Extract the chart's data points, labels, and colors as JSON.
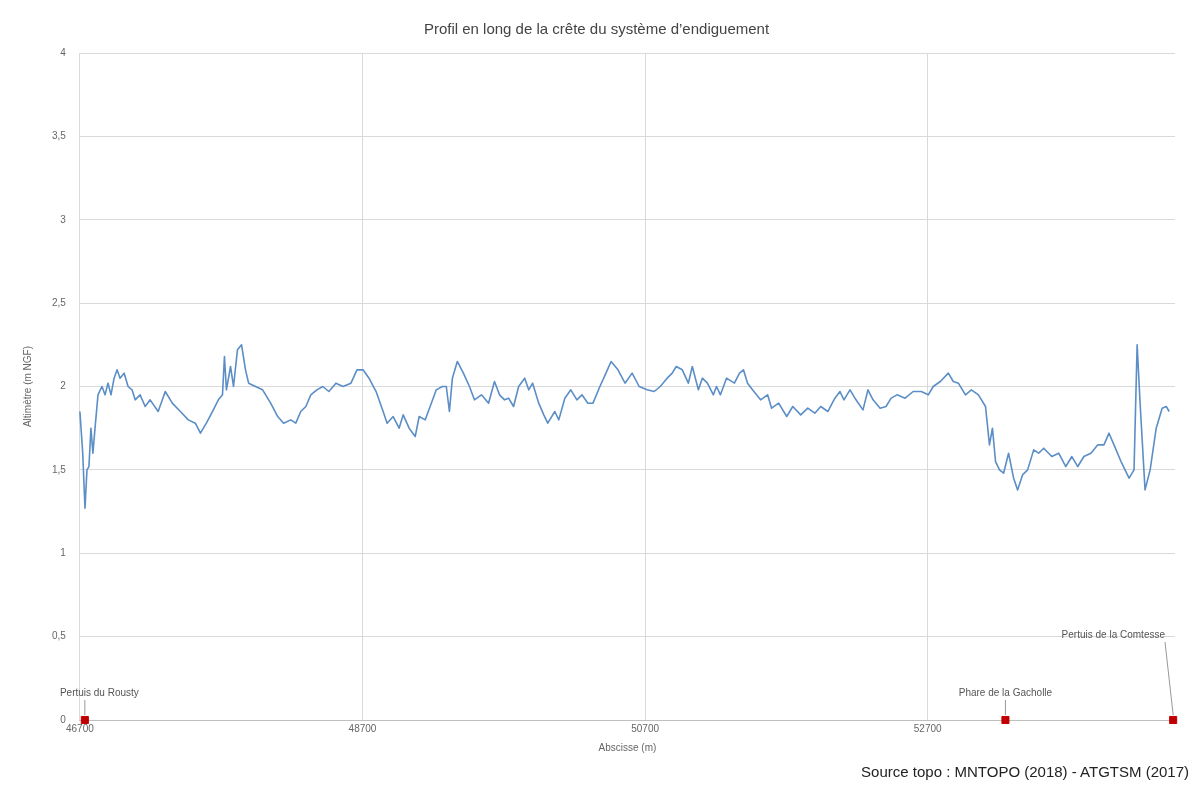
{
  "chart_data": {
    "type": "line",
    "title": "Profil en long de la crête du système d’endiguement",
    "xlabel": "Abscisse (m)",
    "ylabel": "Altimètre (m NGF)",
    "xlim": [
      46700,
      54450
    ],
    "xticks": [
      46700,
      48700,
      50700,
      52700
    ],
    "ylim": [
      0,
      4
    ],
    "yticks": [
      0,
      {
        "value": 0.5,
        "label": "0,5"
      },
      1,
      {
        "value": 1.5,
        "label": "1,5"
      },
      2,
      {
        "value": 2.5,
        "label": "2,5"
      },
      3,
      {
        "value": 3.5,
        "label": "3,5"
      },
      4
    ],
    "grid": true,
    "legend": false,
    "marker": "none",
    "line_style": "solid",
    "series": [
      {
        "type": "line",
        "color": "#5b8ec6",
        "x": [
          46700,
          46720,
          46736,
          46750,
          46764,
          46778,
          46792,
          46807,
          46828,
          46856,
          46878,
          46899,
          46920,
          46942,
          46963,
          46984,
          47013,
          47041,
          47069,
          47091,
          47126,
          47162,
          47197,
          47254,
          47304,
          47354,
          47411,
          47467,
          47517,
          47553,
          47595,
          47638,
          47680,
          47709,
          47723,
          47737,
          47766,
          47787,
          47815,
          47844,
          47872,
          47894,
          47943,
          47993,
          48050,
          48100,
          48142,
          48192,
          48228,
          48263,
          48299,
          48334,
          48377,
          48419,
          48462,
          48512,
          48562,
          48618,
          48661,
          48704,
          48746,
          48796,
          48846,
          48874,
          48917,
          48959,
          48988,
          49030,
          49073,
          49101,
          49144,
          49187,
          49222,
          49265,
          49293,
          49315,
          49336,
          49371,
          49414,
          49457,
          49492,
          49542,
          49592,
          49634,
          49670,
          49705,
          49734,
          49769,
          49805,
          49848,
          49876,
          49904,
          49947,
          49983,
          50011,
          50061,
          50089,
          50132,
          50174,
          50217,
          50253,
          50295,
          50331,
          50380,
          50423,
          50459,
          50508,
          50558,
          50608,
          50658,
          50714,
          50764,
          50807,
          50856,
          50892,
          50920,
          50963,
          51006,
          51034,
          51077,
          51105,
          51141,
          51183,
          51205,
          51233,
          51276,
          51332,
          51368,
          51396,
          51425,
          51460,
          51517,
          51567,
          51595,
          51645,
          51702,
          51745,
          51801,
          51851,
          51901,
          51943,
          51993,
          52043,
          52079,
          52107,
          52150,
          52185,
          52242,
          52277,
          52313,
          52363,
          52405,
          52441,
          52483,
          52540,
          52597,
          52654,
          52704,
          52739,
          52789,
          52846,
          52881,
          52917,
          52967,
          53009,
          53059,
          53109,
          53137,
          53158,
          53180,
          53208,
          53237,
          53272,
          53308,
          53336,
          53371,
          53407,
          53450,
          53485,
          53521,
          53578,
          53627,
          53677,
          53720,
          53762,
          53805,
          53855,
          53904,
          53947,
          53983,
          54018,
          54068,
          54125,
          54160,
          54182,
          54203,
          54238,
          54274,
          54317,
          54359,
          54388,
          54409
        ],
        "values": [
          1.85,
          1.6,
          1.27,
          1.5,
          1.52,
          1.75,
          1.6,
          1.75,
          1.95,
          2.0,
          1.95,
          2.02,
          1.95,
          2.05,
          2.1,
          2.05,
          2.08,
          2.0,
          1.98,
          1.92,
          1.95,
          1.88,
          1.92,
          1.85,
          1.97,
          1.9,
          1.85,
          1.8,
          1.78,
          1.72,
          1.78,
          1.85,
          1.92,
          1.95,
          2.18,
          1.98,
          2.12,
          2.0,
          2.22,
          2.25,
          2.1,
          2.02,
          2.0,
          1.98,
          1.9,
          1.82,
          1.78,
          1.8,
          1.78,
          1.85,
          1.88,
          1.95,
          1.98,
          2.0,
          1.97,
          2.02,
          2.0,
          2.02,
          2.1,
          2.1,
          2.05,
          1.97,
          1.85,
          1.78,
          1.82,
          1.75,
          1.83,
          1.75,
          1.7,
          1.82,
          1.8,
          1.9,
          1.98,
          2.0,
          2.0,
          1.85,
          2.05,
          2.15,
          2.08,
          2.0,
          1.92,
          1.95,
          1.9,
          2.03,
          1.95,
          1.92,
          1.93,
          1.88,
          2.0,
          2.05,
          1.98,
          2.02,
          1.9,
          1.83,
          1.78,
          1.85,
          1.8,
          1.93,
          1.98,
          1.92,
          1.95,
          1.9,
          1.9,
          2.0,
          2.08,
          2.15,
          2.1,
          2.02,
          2.08,
          2.0,
          1.98,
          1.97,
          2.0,
          2.05,
          2.08,
          2.12,
          2.1,
          2.02,
          2.12,
          1.98,
          2.05,
          2.02,
          1.95,
          2.0,
          1.95,
          2.05,
          2.02,
          2.08,
          2.1,
          2.02,
          1.98,
          1.92,
          1.95,
          1.87,
          1.9,
          1.82,
          1.88,
          1.83,
          1.87,
          1.84,
          1.88,
          1.85,
          1.93,
          1.97,
          1.92,
          1.98,
          1.93,
          1.86,
          1.98,
          1.92,
          1.87,
          1.88,
          1.93,
          1.95,
          1.93,
          1.97,
          1.97,
          1.95,
          2.0,
          2.03,
          2.08,
          2.03,
          2.02,
          1.95,
          1.98,
          1.95,
          1.88,
          1.65,
          1.75,
          1.55,
          1.5,
          1.48,
          1.6,
          1.45,
          1.38,
          1.47,
          1.5,
          1.62,
          1.6,
          1.63,
          1.58,
          1.6,
          1.52,
          1.58,
          1.52,
          1.58,
          1.6,
          1.65,
          1.65,
          1.72,
          1.65,
          1.55,
          1.45,
          1.5,
          2.25,
          1.9,
          1.38,
          1.5,
          1.75,
          1.87,
          1.88,
          1.85
        ]
      },
      {
        "type": "scatter",
        "color": "#c00000",
        "marker": "square",
        "x": [
          46735,
          53250,
          54437
        ],
        "values": [
          0,
          0,
          0
        ]
      }
    ],
    "annotations": [
      {
        "text": "Pertuis du Rousty",
        "x": 46735,
        "y": 0
      },
      {
        "text": "Phare de la Gacholle",
        "x": 53250,
        "y": 0
      },
      {
        "text": "Pertuis de la Comtesse",
        "x": 54437,
        "y": 0
      },
      "Source topo : MNTOPO (2018) - ATGTSM (2017)"
    ]
  }
}
